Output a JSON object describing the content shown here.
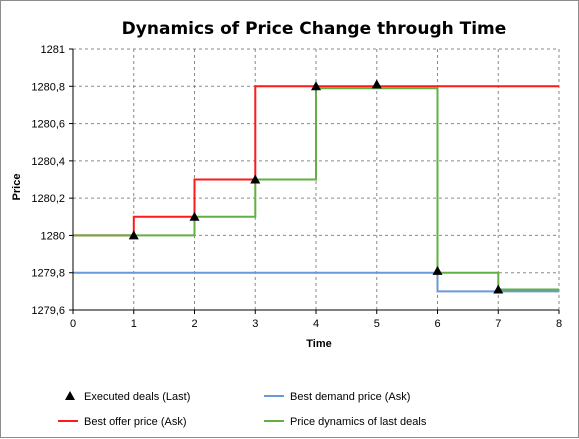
{
  "chart_data": {
    "type": "line",
    "title": "Dynamics of Price Change through Time",
    "xlabel": "Time",
    "ylabel": "Price",
    "xlim": [
      0,
      8
    ],
    "ylim": [
      1279.6,
      1281
    ],
    "x_ticks": [
      0,
      1,
      2,
      3,
      4,
      5,
      6,
      7,
      8
    ],
    "x_tick_labels": [
      "0",
      "1",
      "2",
      "3",
      "4",
      "5",
      "6",
      "7",
      "8"
    ],
    "y_ticks": [
      1279.6,
      1279.8,
      1280,
      1280.2,
      1280.4,
      1280.6,
      1280.8,
      1281
    ],
    "y_tick_labels": [
      "1279,6",
      "1279,8",
      "1280",
      "1280,2",
      "1280,4",
      "1280,6",
      "1280,8",
      "1281"
    ],
    "grid": true,
    "legend_position": "bottom",
    "series": [
      {
        "name": "Executed deals (Last)",
        "kind": "markers",
        "marker": "triangle",
        "color": "#000000",
        "points": [
          [
            1,
            1280
          ],
          [
            2,
            1280.1
          ],
          [
            3,
            1280.3
          ],
          [
            4,
            1280.8
          ],
          [
            5,
            1280.81
          ],
          [
            6,
            1279.81
          ],
          [
            7,
            1279.71
          ]
        ]
      },
      {
        "name": "Best demand price (Ask)",
        "kind": "step",
        "color": "#6a9ad6",
        "points": [
          [
            0,
            1279.8
          ],
          [
            6,
            1279.8
          ],
          [
            6,
            1279.7
          ],
          [
            8,
            1279.7
          ]
        ]
      },
      {
        "name": "Best offer price (Ask)",
        "kind": "step",
        "color": "#ff1a1a",
        "points": [
          [
            0,
            1280
          ],
          [
            1,
            1280
          ],
          [
            1,
            1280.1
          ],
          [
            2,
            1280.1
          ],
          [
            2,
            1280.3
          ],
          [
            3,
            1280.3
          ],
          [
            3,
            1280.8
          ],
          [
            8,
            1280.8
          ]
        ]
      },
      {
        "name": "Price dynamics of last deals",
        "kind": "step",
        "color": "#62b043",
        "points": [
          [
            0,
            1280
          ],
          [
            2,
            1280
          ],
          [
            2,
            1280.1
          ],
          [
            3,
            1280.1
          ],
          [
            3,
            1280.3
          ],
          [
            4,
            1280.3
          ],
          [
            4,
            1280.79
          ],
          [
            6,
            1280.79
          ],
          [
            6,
            1279.8
          ],
          [
            7,
            1279.8
          ],
          [
            7,
            1279.71
          ],
          [
            8,
            1279.71
          ]
        ]
      }
    ]
  }
}
